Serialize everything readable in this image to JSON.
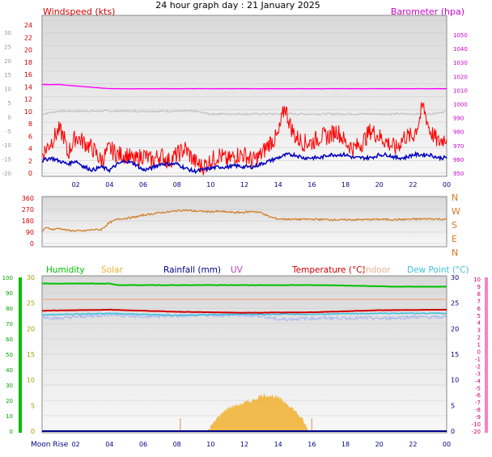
{
  "page_title": "24 hour graph day : 21 January 2025",
  "colors": {
    "wind": "#ff0000",
    "wind_avg": "#0000c0",
    "baro": "#ff00ff",
    "temp_grey": "#bbbbbb",
    "direction": "#d07a20",
    "humidity": "#00c000",
    "solar": "#f0b030",
    "rainfall": "#00008b",
    "uv": "#c040c0",
    "temperature": "#d00000",
    "indoor": "#f0b090",
    "dewpoint": "#40c0e0",
    "moon": "#000080"
  },
  "x_axis_ticks": [
    "02",
    "04",
    "06",
    "08",
    "10",
    "12",
    "14",
    "16",
    "18",
    "20",
    "22",
    "00"
  ],
  "moon_rise_label": "Moon Rise",
  "chart_data": [
    {
      "type": "line",
      "panel": "wind-barometer",
      "left_axis_title": "Windspeed (kts)",
      "right_axis_title": "Barometer (hpa)",
      "far_left_ticks": [
        "30",
        "25",
        "20",
        "15",
        "10",
        "5",
        "0",
        "-5",
        "-10",
        "-15",
        "-20"
      ],
      "left_ticks": [
        "24",
        "22",
        "20",
        "18",
        "16",
        "14",
        "12",
        "10",
        "8",
        "6",
        "4",
        "2",
        "0"
      ],
      "right_ticks": [
        "1050",
        "1040",
        "1030",
        "1020",
        "1010",
        "1000",
        "990",
        "980",
        "970",
        "960",
        "950"
      ],
      "left_ylim": [
        0,
        25
      ],
      "right_ylim": [
        945,
        1053
      ],
      "x_hours": [
        0,
        24
      ],
      "series": [
        {
          "name": "Barometer (hpa)",
          "axis": "right",
          "x": [
            0,
            1,
            2,
            3,
            4,
            5,
            6,
            8,
            10,
            12,
            14,
            16,
            18,
            20,
            22,
            24
          ],
          "values": [
            1014,
            1014,
            1013,
            1012,
            1011,
            1011,
            1011,
            1011,
            1011,
            1011,
            1011,
            1011,
            1011,
            1011,
            1011,
            1011
          ]
        },
        {
          "key": "temperature-grey",
          "axis": "far-left",
          "x": [
            0,
            1,
            2,
            3,
            4,
            5,
            6,
            7,
            8,
            9,
            10,
            11,
            12,
            13,
            14,
            15,
            16,
            17,
            18,
            19,
            20,
            21,
            22,
            23,
            24
          ],
          "values": [
            1,
            2,
            2,
            2,
            2,
            2,
            2,
            2,
            2,
            2,
            1,
            1,
            1,
            1,
            1,
            1,
            1,
            1,
            1,
            1,
            1,
            1,
            1,
            1,
            2
          ]
        },
        {
          "key": "wind-gust",
          "axis": "left",
          "x": [
            0,
            0.5,
            1,
            1.3,
            1.5,
            2,
            2.5,
            3,
            3.5,
            4,
            4.5,
            5,
            5.5,
            6,
            6.5,
            7,
            7.5,
            8,
            8.5,
            9,
            9.5,
            10,
            10.5,
            11,
            11.5,
            12,
            12.5,
            13,
            13.5,
            14,
            14.4,
            14.7,
            15,
            15.5,
            16,
            16.5,
            17,
            17.5,
            18,
            18.5,
            19,
            19.5,
            20,
            20.5,
            21,
            21.5,
            22,
            22.3,
            22.6,
            23,
            23.5,
            24
          ],
          "values": [
            3,
            5,
            7,
            6,
            3,
            6,
            5,
            4,
            2,
            4,
            3,
            3,
            2,
            3,
            2,
            3,
            2,
            3,
            4,
            2,
            1,
            2,
            3,
            2,
            3,
            3,
            2,
            3,
            5,
            6,
            11,
            8,
            6,
            5,
            5,
            6,
            6,
            7,
            5,
            4,
            5,
            7,
            6,
            5,
            4,
            6,
            6,
            8,
            11,
            7,
            5,
            6
          ]
        },
        {
          "key": "wind-average",
          "axis": "left",
          "x": [
            0,
            0.5,
            1,
            1.5,
            2,
            2.5,
            3,
            3.5,
            4,
            4.5,
            5,
            5.5,
            6,
            6.5,
            7,
            7.5,
            8,
            8.5,
            9,
            9.5,
            10,
            10.5,
            11,
            11.5,
            12,
            12.5,
            13,
            13.5,
            14,
            14.5,
            15,
            15.5,
            16,
            16.5,
            17,
            17.5,
            18,
            18.5,
            19,
            19.5,
            20,
            20.5,
            21,
            21.5,
            22,
            22.5,
            23,
            23.5,
            24
          ],
          "values": [
            2,
            2.5,
            2,
            1.5,
            2,
            1,
            0.5,
            1,
            0.5,
            1.5,
            2,
            1.5,
            0.5,
            0.8,
            1.5,
            1.5,
            1.5,
            0.8,
            0.3,
            0.5,
            0.8,
            1,
            1,
            1.2,
            1,
            1,
            1.5,
            2,
            2.5,
            3,
            3,
            2.5,
            2.5,
            2.5,
            3,
            3,
            3,
            2.5,
            2.5,
            2.5,
            3,
            3,
            2.5,
            2.5,
            3,
            3,
            3,
            2.5,
            2.5
          ]
        }
      ]
    },
    {
      "type": "line",
      "panel": "wind-direction",
      "left_ticks": [
        "360",
        "270",
        "180",
        "90",
        "0"
      ],
      "right_labels": [
        "N",
        "W",
        "S",
        "E",
        "N"
      ],
      "ylim": [
        0,
        360
      ],
      "x_hours": [
        0,
        24
      ],
      "series": [
        {
          "key": "wind-direction",
          "x": [
            0,
            0.3,
            0.6,
            1,
            1.5,
            2,
            2.5,
            3,
            3.5,
            4,
            4.5,
            5,
            5.5,
            6,
            6.5,
            7,
            7.5,
            8,
            8.5,
            9,
            9.5,
            10,
            10.5,
            11,
            11.5,
            12,
            12.5,
            13,
            13.5,
            14,
            15,
            16,
            17,
            18,
            19,
            20,
            21,
            22,
            23,
            24
          ],
          "values": [
            95,
            130,
            110,
            120,
            105,
            100,
            100,
            110,
            110,
            165,
            195,
            200,
            210,
            225,
            235,
            245,
            250,
            260,
            265,
            258,
            255,
            252,
            255,
            250,
            245,
            248,
            255,
            245,
            210,
            195,
            192,
            193,
            190,
            188,
            190,
            192,
            190,
            193,
            196,
            192
          ]
        }
      ]
    },
    {
      "type": "line",
      "panel": "humidity-temperature",
      "legend": [
        "Humidity",
        "Solar",
        "Rainfall (mm)",
        "UV",
        "Temperature (°C)",
        "Indoor",
        "Dew Point (°C)"
      ],
      "far_left_ticks": [
        "100",
        "90",
        "80",
        "70",
        "60",
        "50",
        "40",
        "30",
        "20",
        "10",
        "0"
      ],
      "left_ticks": [
        "30",
        "25",
        "20",
        "15",
        "10",
        "5",
        "0"
      ],
      "right_ticks": [
        "30",
        "25",
        "20",
        "15",
        "10",
        "5",
        "0"
      ],
      "far_right_ticks": [
        "10",
        "9",
        "8",
        "7",
        "6",
        "5",
        "4",
        "3",
        "2",
        "1",
        "0",
        "-1",
        "-2",
        "-3",
        "-4",
        "-5",
        "-6",
        "-7",
        "-8",
        "-9",
        "-10",
        "-20"
      ],
      "humidity_ylim": [
        0,
        100
      ],
      "temperature_ylim": [
        -10,
        10
      ],
      "x_hours": [
        0,
        24
      ],
      "series": [
        {
          "name": "Humidity",
          "x": [
            0,
            4,
            4.5,
            10,
            12,
            14,
            17,
            21,
            22,
            24
          ],
          "values": [
            96,
            96,
            95,
            95,
            95,
            95,
            95,
            94,
            94,
            94
          ]
        },
        {
          "name": "Indoor",
          "x": [
            0,
            24
          ],
          "values": [
            5.7,
            5.7
          ]
        },
        {
          "name": "Temperature (°C)",
          "x": [
            0,
            4,
            8,
            10,
            12,
            16,
            20,
            24
          ],
          "values": [
            3.5,
            3.7,
            3.3,
            3.2,
            3.1,
            3.2,
            3.6,
            3.7
          ]
        },
        {
          "name": "Dew Point (°C)",
          "x": [
            0,
            4,
            8,
            12,
            16,
            20,
            24
          ],
          "values": [
            2.7,
            3.0,
            2.6,
            2.8,
            2.8,
            3.0,
            3.0
          ]
        },
        {
          "key": "temperature-light",
          "x": [
            0,
            1,
            2,
            3,
            4,
            5,
            6,
            7,
            8,
            9,
            10,
            11,
            12,
            13,
            14,
            15,
            16,
            17,
            18,
            19,
            20,
            21,
            22,
            23,
            24
          ],
          "values": [
            2.3,
            2.0,
            2.3,
            2.5,
            2.8,
            2.5,
            2.3,
            2.4,
            2.5,
            2.6,
            2.7,
            2.6,
            2.6,
            2.5,
            1.8,
            1.9,
            2.0,
            2.1,
            2.0,
            2.1,
            2.0,
            2.1,
            2.3,
            2.2,
            2.3
          ]
        },
        {
          "name": "Solar",
          "x": [
            9.8,
            10.5,
            11,
            11.5,
            12,
            12.5,
            13,
            13.5,
            14,
            14.5,
            15,
            15.5,
            15.8
          ],
          "values": [
            0,
            3,
            4.5,
            5,
            5.5,
            6,
            7,
            7,
            6.5,
            5.5,
            4,
            2,
            0
          ]
        },
        {
          "name": "Rainfall (mm)",
          "x": [
            0,
            24
          ],
          "values": [
            0,
            0
          ]
        }
      ],
      "markers": [
        8.2,
        16
      ]
    }
  ]
}
